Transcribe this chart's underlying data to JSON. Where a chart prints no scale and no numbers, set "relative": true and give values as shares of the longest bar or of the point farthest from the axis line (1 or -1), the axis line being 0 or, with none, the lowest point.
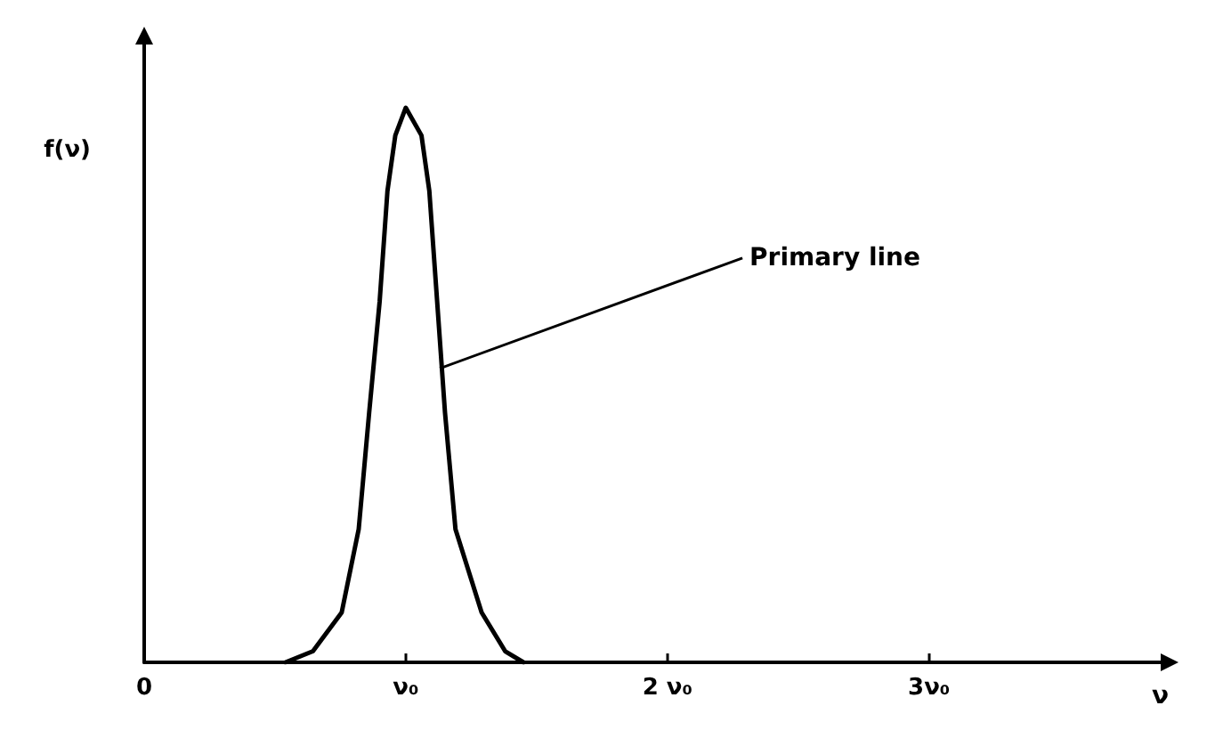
{
  "chart_data": {
    "type": "line",
    "xlabel": "ν",
    "ylabel": "f(ν)",
    "relative": true,
    "x": [
      0.54,
      0.645,
      0.755,
      0.82,
      0.86,
      0.9,
      0.93,
      0.96,
      1.0,
      1.06,
      1.09,
      1.12,
      1.15,
      1.19,
      1.29,
      1.38,
      1.45
    ],
    "values": [
      0,
      0.02,
      0.09,
      0.24,
      0.45,
      0.65,
      0.85,
      0.95,
      1,
      0.95,
      0.85,
      0.65,
      0.45,
      0.24,
      0.09,
      0.02,
      0
    ],
    "color": "#000000",
    "xlim": [
      0,
      3.92
    ],
    "xticks": [
      0,
      {
        "value": 1,
        "label": "ν₀"
      },
      {
        "value": 2,
        "label": "2 ν₀"
      },
      {
        "value": 3,
        "label": "3ν₀"
      }
    ],
    "annotations": [
      {
        "text": "Primary line",
        "x": 1.13,
        "y": 0.53
      }
    ],
    "grid": false,
    "marker": "none",
    "line_style": "solid"
  }
}
